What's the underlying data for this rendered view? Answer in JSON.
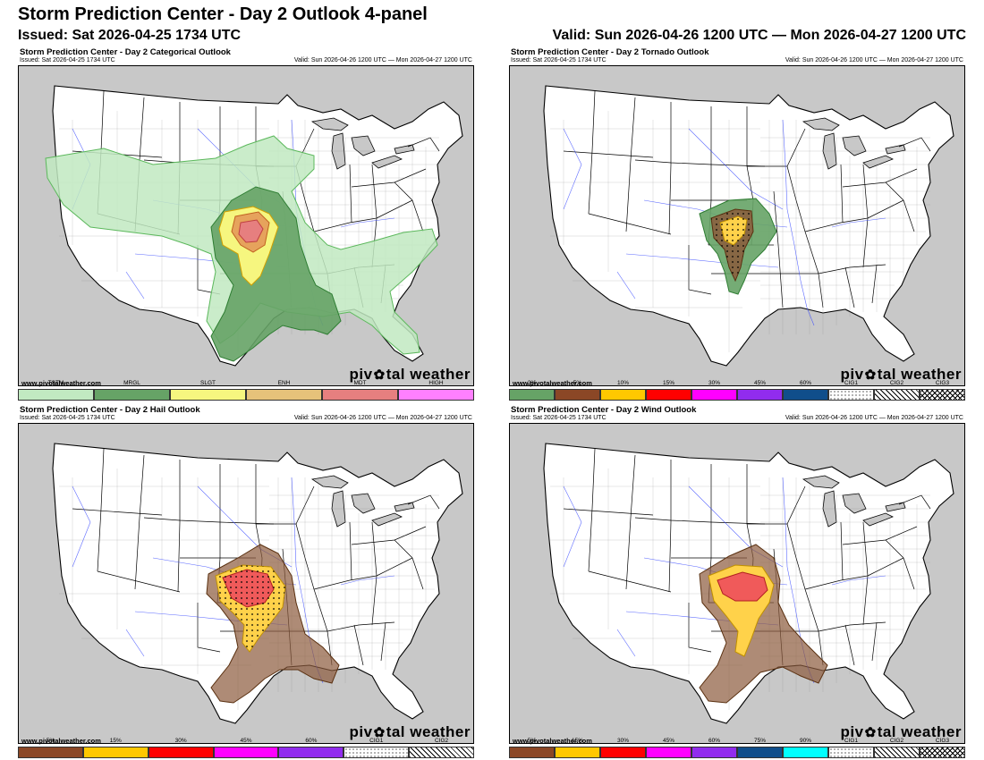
{
  "header": {
    "title": "Storm Prediction Center - Day 2 Outlook 4-panel",
    "issued": "Issued: Sat 2026-04-25 1734 UTC",
    "valid": "Valid: Sun 2026-04-26 1200 UTC — Mon 2026-04-27 1200 UTC"
  },
  "colors": {
    "land": "#ffffff",
    "ocean_outside": "#c8c8c8",
    "state_line": "#000000",
    "county_line": "#555555",
    "rivers": "#3344ff",
    "tstm": "#c1e9c1",
    "mrgl": "#66a366",
    "slgt": "#f6f67f",
    "enh": "#e6c27a",
    "mdt": "#e67f7f",
    "high": "#ff80ff",
    "prob_2": "#66a366",
    "prob_5": "#8b4726",
    "prob_10": "#ffc800",
    "prob_15": "#ff0000",
    "prob_30": "#ff00ff",
    "prob_45": "#912cee",
    "prob_60": "#104e8b",
    "prob_75": "#104e8b",
    "prob_90": "#00ffff"
  },
  "panels": [
    {
      "title": "Storm Prediction Center - Day 2 Categorical Outlook",
      "issued": "Issued: Sat 2026-04-25 1734 UTC",
      "valid": "Valid: Sun 2026-04-26 1200 UTC — Mon 2026-04-27 1200 UTC",
      "source": "www.pivotalweather.com",
      "brand": [
        "piv",
        "tal weather"
      ],
      "brand_icon": "gear-icon",
      "legend": [
        {
          "label": "TSTM",
          "color": "#c1e9c1"
        },
        {
          "label": "MRGL",
          "color": "#66a366"
        },
        {
          "label": "SLGT",
          "color": "#f6f67f"
        },
        {
          "label": "ENH",
          "color": "#e6c27a"
        },
        {
          "label": "MDT",
          "color": "#e67f7f"
        },
        {
          "label": "HIGH",
          "color": "#ff80ff"
        }
      ]
    },
    {
      "title": "Storm Prediction Center - Day 2 Tornado Outlook",
      "issued": "Issued: Sat 2026-04-25 1734 UTC",
      "valid": "Valid: Sun 2026-04-26 1200 UTC — Mon 2026-04-27 1200 UTC",
      "source": "www.pivotalweather.com",
      "brand": [
        "piv",
        "tal weather"
      ],
      "brand_icon": "gear-icon",
      "legend": [
        {
          "label": "2%",
          "color": "#66a366"
        },
        {
          "label": "5%",
          "color": "#8b4726"
        },
        {
          "label": "10%",
          "color": "#ffc800"
        },
        {
          "label": "15%",
          "color": "#ff0000"
        },
        {
          "label": "30%",
          "color": "#ff00ff"
        },
        {
          "label": "45%",
          "color": "#912cee"
        },
        {
          "label": "60%",
          "color": "#104e8b"
        },
        {
          "label": "CIG1",
          "color": "hatch1"
        },
        {
          "label": "CIG2",
          "color": "hatch2"
        },
        {
          "label": "CIG3",
          "color": "hatch3"
        }
      ]
    },
    {
      "title": "Storm Prediction Center - Day 2 Hail Outlook",
      "issued": "Issued: Sat 2026-04-25 1734 UTC",
      "valid": "Valid: Sun 2026-04-26 1200 UTC — Mon 2026-04-27 1200 UTC",
      "source": "www.pivotalweather.com",
      "brand": [
        "piv",
        "tal weather"
      ],
      "brand_icon": "gear-icon",
      "legend": [
        {
          "label": "5%",
          "color": "#8b4726"
        },
        {
          "label": "15%",
          "color": "#ffc800"
        },
        {
          "label": "30%",
          "color": "#ff0000"
        },
        {
          "label": "45%",
          "color": "#ff00ff"
        },
        {
          "label": "60%",
          "color": "#912cee"
        },
        {
          "label": "CIG1",
          "color": "hatch1"
        },
        {
          "label": "CIG2",
          "color": "hatch2"
        }
      ]
    },
    {
      "title": "Storm Prediction Center - Day 2 Wind Outlook",
      "issued": "Issued: Sat 2026-04-25 1734 UTC",
      "valid": "Valid: Sun 2026-04-26 1200 UTC — Mon 2026-04-27 1200 UTC",
      "source": "www.pivotalweather.com",
      "brand": [
        "piv",
        "tal weather"
      ],
      "brand_icon": "gear-icon",
      "legend": [
        {
          "label": "5%",
          "color": "#8b4726"
        },
        {
          "label": "15%",
          "color": "#ffc800"
        },
        {
          "label": "30%",
          "color": "#ff0000"
        },
        {
          "label": "45%",
          "color": "#ff00ff"
        },
        {
          "label": "60%",
          "color": "#912cee"
        },
        {
          "label": "75%",
          "color": "#104e8b"
        },
        {
          "label": "90%",
          "color": "#00ffff"
        },
        {
          "label": "CIG1",
          "color": "hatch1"
        },
        {
          "label": "CIG2",
          "color": "hatch2"
        },
        {
          "label": "CIG3",
          "color": "hatch3"
        }
      ]
    }
  ]
}
